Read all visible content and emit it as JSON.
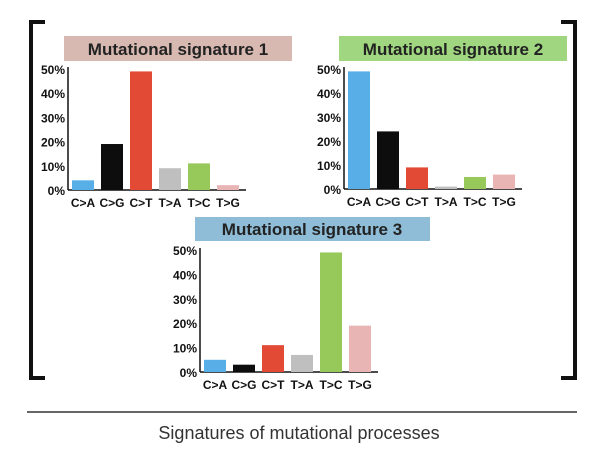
{
  "colors": {
    "bracket": "#111111",
    "axis": "#111111",
    "caption_rule": "#333333"
  },
  "caption": "Signatures of mutational processes",
  "chart_data": [
    {
      "type": "bar",
      "title": "Mutational signature 1",
      "title_bg": "#d7b9b1",
      "categories": [
        "C>A",
        "C>G",
        "C>T",
        "T>A",
        "T>C",
        "T>G"
      ],
      "values": [
        4,
        19,
        49,
        9,
        11,
        2
      ],
      "bar_colors": [
        "#58aee6",
        "#0d0d0d",
        "#e24a36",
        "#bfbfbf",
        "#96c95a",
        "#e8b4b4"
      ],
      "yticks": [
        "0%",
        "10%",
        "20%",
        "30%",
        "40%",
        "50%"
      ],
      "ylim": [
        0,
        50
      ],
      "xlabel": "",
      "ylabel": ""
    },
    {
      "type": "bar",
      "title": "Mutational signature 2",
      "title_bg": "#9fd67f",
      "categories": [
        "C>A",
        "C>G",
        "C>T",
        "T>A",
        "T>C",
        "T>G"
      ],
      "values": [
        49,
        24,
        9,
        1,
        5,
        6
      ],
      "bar_colors": [
        "#58aee6",
        "#0d0d0d",
        "#e24a36",
        "#bfbfbf",
        "#96c95a",
        "#e8b4b4"
      ],
      "yticks": [
        "0%",
        "10%",
        "20%",
        "30%",
        "40%",
        "50%"
      ],
      "ylim": [
        0,
        50
      ],
      "xlabel": "",
      "ylabel": ""
    },
    {
      "type": "bar",
      "title": "Mutational signature 3",
      "title_bg": "#8fbdd8",
      "categories": [
        "C>A",
        "C>G",
        "C>T",
        "T>A",
        "T>C",
        "T>G"
      ],
      "values": [
        5,
        3,
        11,
        7,
        49,
        19
      ],
      "bar_colors": [
        "#58aee6",
        "#0d0d0d",
        "#e24a36",
        "#bfbfbf",
        "#96c95a",
        "#e8b4b4"
      ],
      "yticks": [
        "0%",
        "10%",
        "20%",
        "30%",
        "40%",
        "50%"
      ],
      "ylim": [
        0,
        50
      ],
      "xlabel": "",
      "ylabel": ""
    }
  ]
}
